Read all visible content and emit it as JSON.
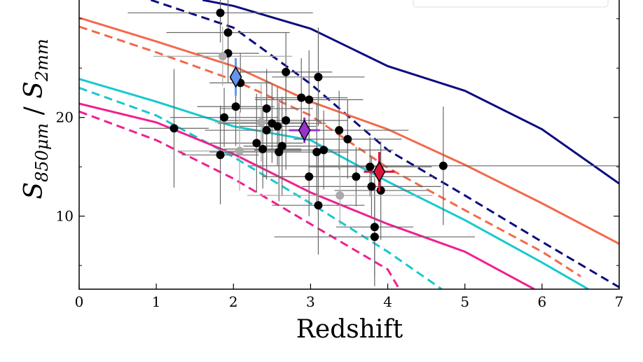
{
  "chart_data": {
    "type": "line",
    "x_label": "Redshift",
    "y_label_parts": [
      "S",
      "850μm",
      " / ",
      "S",
      "2mm"
    ],
    "xlim": [
      0,
      7
    ],
    "xticks": [
      0,
      1,
      2,
      3,
      4,
      5,
      6,
      7
    ],
    "ylim": [
      2.6,
      31.9
    ],
    "yticks": [
      10,
      20
    ],
    "yminor": [
      5,
      15,
      25,
      30
    ],
    "lines": [
      {
        "color": "#0b0b80",
        "dash": false,
        "x": [
          1.6,
          2,
          3,
          4,
          5,
          6,
          7
        ],
        "values": [
          31.9,
          31.3,
          29.0,
          25.2,
          22.7,
          18.8,
          13.3
        ]
      },
      {
        "color": "#0b0b80",
        "dash": true,
        "x": [
          0.93,
          2,
          3,
          4,
          5,
          6,
          7
        ],
        "values": [
          31.9,
          29.1,
          23.4,
          16.7,
          12.1,
          7.4,
          2.8
        ]
      },
      {
        "color": "#f4694a",
        "dash": false,
        "x": [
          0,
          1,
          2,
          3,
          4,
          5,
          6,
          7
        ],
        "values": [
          30.1,
          27.7,
          25.2,
          21.6,
          18.8,
          15.2,
          11.3,
          7.2
        ]
      },
      {
        "color": "#f4694a",
        "dash": true,
        "x": [
          0,
          1,
          2,
          3,
          4,
          5,
          6,
          6.5
        ],
        "values": [
          29.2,
          26.6,
          23.8,
          20.2,
          14.9,
          10.6,
          6.4,
          3.9
        ]
      },
      {
        "color": "#17c8d0",
        "dash": false,
        "x": [
          0,
          1,
          2,
          3,
          4,
          5,
          6,
          6.6
        ],
        "values": [
          23.9,
          21.6,
          19.1,
          17.7,
          13.5,
          9.6,
          5.3,
          2.6
        ]
      },
      {
        "color": "#17c8d0",
        "dash": true,
        "x": [
          0,
          1,
          2,
          3,
          4,
          4.7
        ],
        "values": [
          23.0,
          20.2,
          16.0,
          11.3,
          6.4,
          2.6
        ]
      },
      {
        "color": "#f0208f",
        "dash": false,
        "x": [
          0,
          1,
          2,
          3,
          4,
          5,
          5.9
        ],
        "values": [
          21.4,
          19.5,
          16.3,
          12.4,
          9.2,
          6.4,
          2.6
        ]
      },
      {
        "color": "#f0208f",
        "dash": true,
        "x": [
          0,
          1,
          2,
          3,
          4,
          4.15
        ],
        "values": [
          20.6,
          17.7,
          13.8,
          9.2,
          4.6,
          2.6
        ]
      }
    ],
    "points": [
      {
        "color": "#000000",
        "bar_color": "#666666",
        "x": [
          1.83,
          1.93,
          1.93,
          2.09,
          2.03,
          1.88,
          1.23,
          1.83,
          2.43,
          2.43,
          2.5,
          2.57,
          2.3,
          2.38,
          2.59,
          2.63,
          2.68,
          2.68,
          2.88,
          2.98,
          3.1,
          3.08,
          3.17,
          2.98,
          3.1,
          3.37,
          3.48,
          3.59,
          3.77,
          3.79,
          3.91,
          3.83,
          3.83,
          4.72
        ],
        "values": [
          30.6,
          28.6,
          26.5,
          23.5,
          21.1,
          20.0,
          18.9,
          16.2,
          20.9,
          18.7,
          19.4,
          19.1,
          17.4,
          16.8,
          16.5,
          17.1,
          19.7,
          24.6,
          22.0,
          21.8,
          24.1,
          16.5,
          16.7,
          14.0,
          11.1,
          18.7,
          17.8,
          14.0,
          15.0,
          13.0,
          12.6,
          8.9,
          7.9,
          15.1
        ],
        "xerr": [
          1.2,
          0.8,
          0.4,
          0.4,
          0.5,
          0.7,
          0.45,
          0.5,
          0.6,
          0.8,
          0.7,
          0.5,
          0.6,
          0.5,
          0.9,
          0.5,
          0.8,
          0.6,
          0.6,
          0.7,
          0.6,
          0.4,
          0.9,
          0.6,
          0.6,
          0.9,
          0.7,
          1.0,
          0.8,
          0.9,
          0.6,
          0.5,
          1.3,
          2.5
        ],
        "yerr": [
          3,
          4,
          3,
          3,
          4,
          3,
          6,
          5,
          4,
          5,
          4,
          4,
          5,
          4,
          5,
          5,
          5,
          4,
          4,
          5,
          5,
          5,
          4,
          4,
          5,
          4,
          4,
          3,
          3,
          3,
          5,
          5,
          5,
          6
        ]
      },
      {
        "color": "#aaaaaa",
        "bar_color": "#aaaaaa",
        "x": [
          1.86,
          2.36,
          2.08,
          3.38
        ],
        "values": [
          26.2,
          19.5,
          16.6,
          12.1
        ],
        "xerr": [
          0.9,
          0.6,
          0.8,
          1.2
        ],
        "yerr": [
          3,
          4,
          4,
          3
        ]
      }
    ],
    "diamonds": [
      {
        "color": "#6495ed",
        "x": 2.03,
        "value": 24.1,
        "xerr": 0.05,
        "yerr": 1.9
      },
      {
        "color": "#9932cc",
        "x": 2.92,
        "value": 18.7,
        "xerr": 0.2,
        "yerr": 1.3
      },
      {
        "color": "#dc143c",
        "x": 3.89,
        "value": 14.5,
        "xerr": 0.2,
        "yerr": 2.0
      }
    ]
  }
}
